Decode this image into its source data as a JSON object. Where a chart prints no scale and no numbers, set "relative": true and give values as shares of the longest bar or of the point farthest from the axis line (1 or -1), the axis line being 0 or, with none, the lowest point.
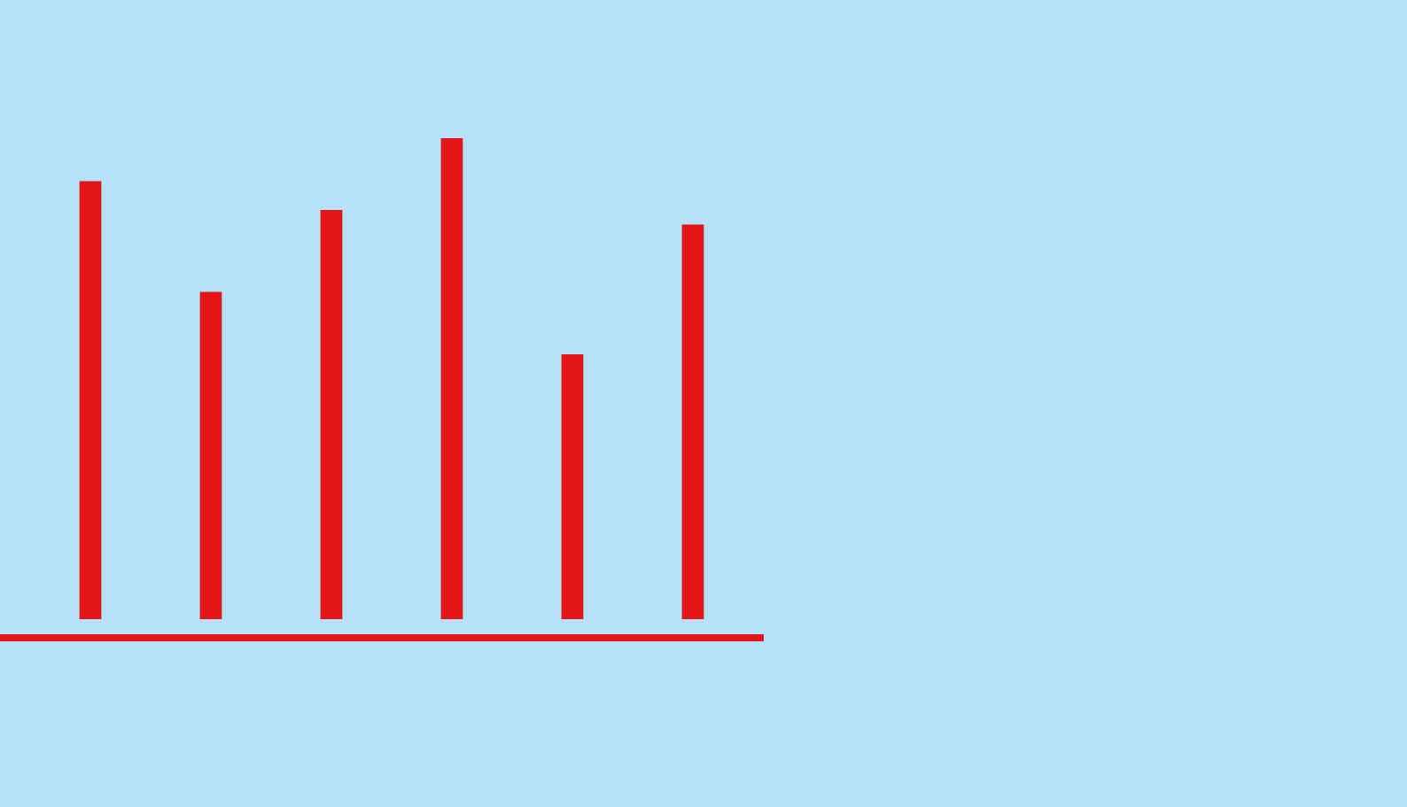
{
  "chart_data": {
    "type": "bar",
    "relative": true,
    "categories": [
      null,
      null,
      null,
      null,
      null,
      null
    ],
    "color": "#e31519",
    "values": [
      0.91,
      0.68,
      0.85,
      1,
      0.55,
      0.82
    ]
  }
}
